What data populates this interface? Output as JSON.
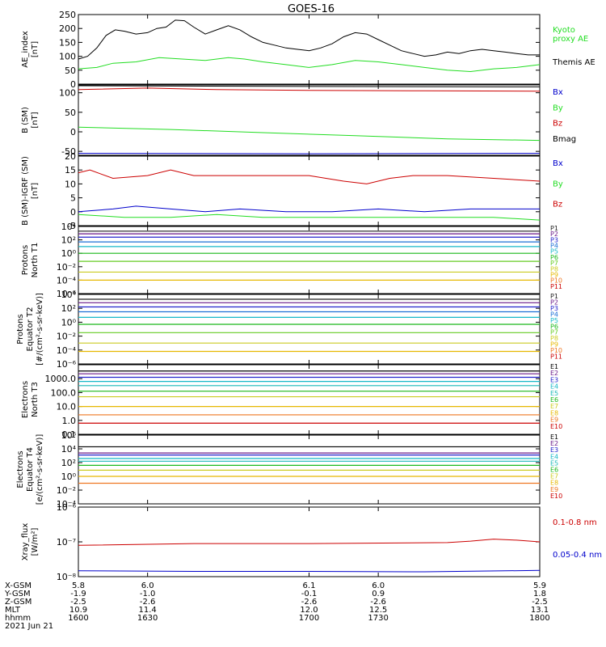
{
  "title": "GOES-16",
  "colors": {
    "black": "#000000",
    "green": "#22dd22",
    "blue": "#0000cc",
    "red": "#cc0000",
    "P": [
      "#222222",
      "#6a1a8a",
      "#2222cc",
      "#1a6fd6",
      "#16b8c8",
      "#1ab81a",
      "#66cc22",
      "#cccc22",
      "#e6b800",
      "#ee7722",
      "#cc0000"
    ],
    "E": [
      "#000000",
      "#6a1a8a",
      "#2222cc",
      "#16b8c8",
      "#1ab8b8",
      "#1ab81a",
      "#cccc22",
      "#e6b800",
      "#ee7722",
      "#cc0000"
    ]
  },
  "chart_data": [
    {
      "type": "line",
      "ylabel": "AE_index\n[nT]",
      "ylim": [
        0,
        250
      ],
      "yticks": [
        "0",
        "50",
        "100",
        "150",
        "200",
        "250"
      ],
      "ytick_values": [
        0,
        50,
        100,
        150,
        200,
        250
      ],
      "series": [
        {
          "name": "Kyoto\nproxy AE",
          "color": "green",
          "x": [
            1600,
            1608,
            1615,
            1625,
            1635,
            1645,
            1655,
            1665,
            1672,
            1680,
            1690,
            1700,
            1710,
            1720,
            1730,
            1740,
            1750,
            1760,
            1770,
            1780,
            1790,
            1800
          ],
          "y": [
            55,
            60,
            75,
            80,
            95,
            90,
            85,
            95,
            90,
            80,
            70,
            60,
            70,
            85,
            80,
            70,
            60,
            50,
            45,
            55,
            60,
            70
          ]
        },
        {
          "name": "Themis AE",
          "color": "black",
          "x": [
            1600,
            1604,
            1608,
            1612,
            1616,
            1620,
            1625,
            1630,
            1634,
            1638,
            1642,
            1646,
            1650,
            1655,
            1660,
            1665,
            1670,
            1675,
            1680,
            1685,
            1690,
            1695,
            1700,
            1705,
            1710,
            1715,
            1720,
            1725,
            1730,
            1735,
            1740,
            1745,
            1750,
            1755,
            1760,
            1765,
            1770,
            1775,
            1780,
            1785,
            1790,
            1795,
            1800
          ],
          "y": [
            90,
            100,
            130,
            175,
            195,
            190,
            180,
            185,
            200,
            205,
            230,
            228,
            205,
            180,
            195,
            210,
            195,
            170,
            150,
            140,
            130,
            125,
            120,
            130,
            145,
            170,
            185,
            180,
            160,
            140,
            120,
            110,
            100,
            105,
            115,
            110,
            120,
            125,
            120,
            115,
            110,
            105,
            105
          ]
        }
      ]
    },
    {
      "type": "line",
      "ylabel": "B (SM)\n[nT]",
      "ylim": [
        -60,
        120
      ],
      "yticks": [
        "-50",
        "0",
        "50",
        "100"
      ],
      "ytick_values": [
        -50,
        0,
        50,
        100
      ],
      "series": [
        {
          "name": "Bx",
          "color": "blue",
          "x": [
            1600,
            1700,
            1800
          ],
          "y": [
            -55,
            -56,
            -55
          ]
        },
        {
          "name": "By",
          "color": "green",
          "x": [
            1600,
            1640,
            1680,
            1720,
            1760,
            1800
          ],
          "y": [
            12,
            6,
            -2,
            -10,
            -18,
            -22
          ]
        },
        {
          "name": "Bz",
          "color": "red",
          "x": [
            1600,
            1630,
            1660,
            1700,
            1750,
            1800
          ],
          "y": [
            108,
            112,
            108,
            106,
            105,
            104
          ]
        },
        {
          "name": "Bmag",
          "color": "black",
          "x": [
            1600,
            1700,
            1800
          ],
          "y": [
            118,
            116,
            115
          ]
        }
      ]
    },
    {
      "type": "line",
      "ylabel": "B (SM)-IGRF (SM)\n[nT]",
      "ylim": [
        -5,
        20
      ],
      "yticks": [
        "-5",
        "0",
        "5",
        "10",
        "15",
        "20"
      ],
      "ytick_values": [
        -5,
        0,
        5,
        10,
        15,
        20
      ],
      "series": [
        {
          "name": "Bx",
          "color": "blue",
          "x": [
            1600,
            1615,
            1625,
            1640,
            1655,
            1670,
            1690,
            1710,
            1730,
            1750,
            1770,
            1790,
            1800
          ],
          "y": [
            0,
            1,
            2,
            1,
            0,
            1,
            0,
            0,
            1,
            0,
            1,
            1,
            1
          ]
        },
        {
          "name": "By",
          "color": "green",
          "x": [
            1600,
            1620,
            1640,
            1660,
            1680,
            1700,
            1720,
            1740,
            1760,
            1780,
            1800
          ],
          "y": [
            -1,
            -2,
            -2,
            -1,
            -2,
            -2,
            -2,
            -2,
            -2,
            -2,
            -3
          ]
        },
        {
          "name": "Bz",
          "color": "red",
          "x": [
            1600,
            1605,
            1615,
            1630,
            1640,
            1650,
            1660,
            1680,
            1700,
            1715,
            1725,
            1735,
            1745,
            1760,
            1780,
            1800
          ],
          "y": [
            14,
            15,
            12,
            13,
            15,
            13,
            13,
            13,
            13,
            11,
            10,
            12,
            13,
            13,
            12,
            11
          ]
        }
      ]
    },
    {
      "type": "line",
      "log": true,
      "ylabel": "Protons\nNorth T1",
      "ylim": [
        -6,
        4
      ],
      "yticks": [
        "10⁻⁶",
        "10⁻⁴",
        "10⁻²",
        "10⁰",
        "10²",
        "10⁴"
      ],
      "ytick_values": [
        -6,
        -4,
        -2,
        0,
        2,
        4
      ],
      "labels": [
        "P1",
        "P2",
        "P3",
        "P4",
        "P5",
        "P6",
        "P7",
        "P8",
        "P9",
        "P10",
        "P11"
      ],
      "levels": [
        3.3,
        2.9,
        2.4,
        1.7,
        1.0,
        0.0,
        -1.2,
        -2.8,
        -4.0,
        null,
        null
      ]
    },
    {
      "type": "line",
      "log": true,
      "ylabel": "Protons\nEquator T2\n[#/(cm²-s-sr-keV)]",
      "ylim": [
        -6,
        4
      ],
      "yticks": [
        "10⁻⁶",
        "10⁻⁴",
        "10⁻²",
        "10⁰",
        "10²",
        "10⁴"
      ],
      "ytick_values": [
        -6,
        -4,
        -2,
        0,
        2,
        4
      ],
      "labels": [
        "P1",
        "P2",
        "P3",
        "P4",
        "P5",
        "P6",
        "P7",
        "P8",
        "P9",
        "P10",
        "P11"
      ],
      "levels": [
        3.3,
        2.8,
        2.2,
        1.5,
        0.7,
        -0.3,
        -1.5,
        -3.0,
        -4.2,
        null,
        null
      ]
    },
    {
      "type": "line",
      "log": true,
      "ylabel": "Electrons\nNorth T3",
      "ylim": [
        -1,
        4
      ],
      "yticks": [
        "0.1",
        "1.0",
        "10.0",
        "100.0",
        "1000.0"
      ],
      "ytick_values": [
        -1,
        0,
        1,
        2,
        3
      ],
      "labels": [
        "E1",
        "E2",
        "E3",
        "E4",
        "E5",
        "E6",
        "E7",
        "E8",
        "E9",
        "E10"
      ],
      "levels": [
        3.55,
        3.35,
        3.1,
        2.8,
        2.5,
        2.1,
        1.7,
        1.0,
        0.4,
        -0.2
      ]
    },
    {
      "type": "line",
      "log": true,
      "ylabel": "Electrons\nEquator T4\n[e/(cm²-s-sr-keV)]",
      "ylim": [
        -4,
        6
      ],
      "yticks": [
        "10⁻⁴",
        "10⁻²",
        "10⁰",
        "10²",
        "10⁴",
        "10⁶"
      ],
      "ytick_values": [
        -4,
        -2,
        0,
        2,
        4,
        6
      ],
      "labels": [
        "E1",
        "E2",
        "E3",
        "E4",
        "E5",
        "E6",
        "E7",
        "E8",
        "E9",
        "E10"
      ],
      "levels": [
        4.3,
        3.4,
        3.1,
        2.6,
        2.2,
        1.6,
        0.9,
        0.0,
        -1.0,
        null
      ]
    },
    {
      "type": "line",
      "log": true,
      "ylabel": "Xray_flux\n[W/m²]",
      "ylim": [
        -8,
        -6
      ],
      "yticks": [
        "10⁻⁸",
        "10⁻⁷",
        "10⁻⁶"
      ],
      "ytick_values": [
        -8,
        -7,
        -6
      ],
      "series": [
        {
          "name": "0.1-0.8 nm",
          "color": "red",
          "x": [
            1600,
            1650,
            1700,
            1760,
            1770,
            1780,
            1790,
            1800
          ],
          "y": [
            -7.1,
            -7.05,
            -7.05,
            -7.02,
            -6.98,
            -6.92,
            -6.95,
            -7.0
          ]
        },
        {
          "name": "0.05-0.4 nm",
          "color": "blue",
          "x": [
            1600,
            1650,
            1700,
            1750,
            1800
          ],
          "y": [
            -7.83,
            -7.85,
            -7.85,
            -7.86,
            -7.82
          ]
        }
      ]
    }
  ],
  "xaxis": {
    "rows": [
      "X-GSM",
      "Y-GSM",
      "Z-GSM",
      "MLT",
      "hhmm"
    ],
    "ticks": [
      {
        "t": 1600,
        "vals": [
          "5.8",
          "-1.9",
          "-2.5",
          "10.9",
          "1600"
        ]
      },
      {
        "t": 1630,
        "vals": [
          "6.0",
          "-1.0",
          "-2.6",
          "11.4",
          "1630"
        ]
      },
      {
        "t": 1700,
        "vals": [
          "6.1",
          "-0.1",
          "-2.6",
          "12.0",
          "1700"
        ]
      },
      {
        "t": 1730,
        "vals": [
          "6.0",
          "0.9",
          "-2.6",
          "12.5",
          "1730"
        ]
      },
      {
        "t": 1800,
        "vals": [
          "5.9",
          "1.8",
          "-2.5",
          "13.1",
          "1800"
        ]
      }
    ],
    "date": "2021 Jun 21"
  }
}
